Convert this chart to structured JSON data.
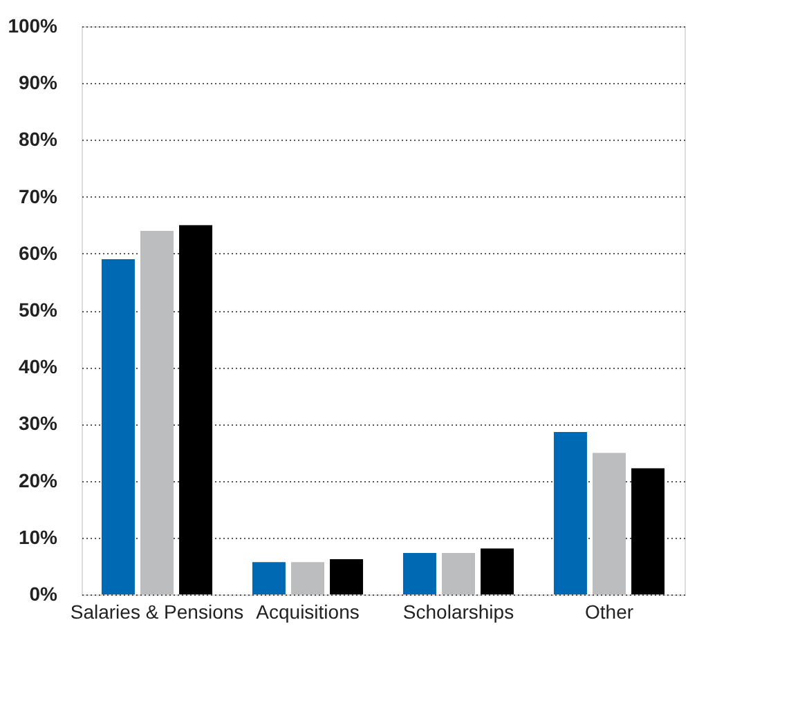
{
  "chart_data": {
    "type": "bar",
    "categories": [
      "Salaries & Pensions",
      "Acquisitions",
      "Scholarships",
      "Other"
    ],
    "series": [
      {
        "color": "#0069b4",
        "values": [
          59.0,
          5.7,
          7.3,
          28.6
        ]
      },
      {
        "color": "#bcbdbf",
        "values": [
          64.0,
          5.7,
          7.3,
          24.9
        ]
      },
      {
        "color": "#000000",
        "values": [
          65.0,
          6.2,
          8.1,
          22.2
        ]
      }
    ],
    "ylim": [
      0,
      100
    ],
    "yticks": [
      {
        "value": 0,
        "label": "0%"
      },
      {
        "value": 10,
        "label": "10%"
      },
      {
        "value": 20,
        "label": "20%"
      },
      {
        "value": 30,
        "label": "30%"
      },
      {
        "value": 40,
        "label": "40%"
      },
      {
        "value": 50,
        "label": "50%"
      },
      {
        "value": 60,
        "label": "60%"
      },
      {
        "value": 70,
        "label": "70%"
      },
      {
        "value": 80,
        "label": "80%"
      },
      {
        "value": 90,
        "label": "90%"
      },
      {
        "value": 100,
        "label": "100%"
      }
    ],
    "grid": "y",
    "legend": false
  }
}
